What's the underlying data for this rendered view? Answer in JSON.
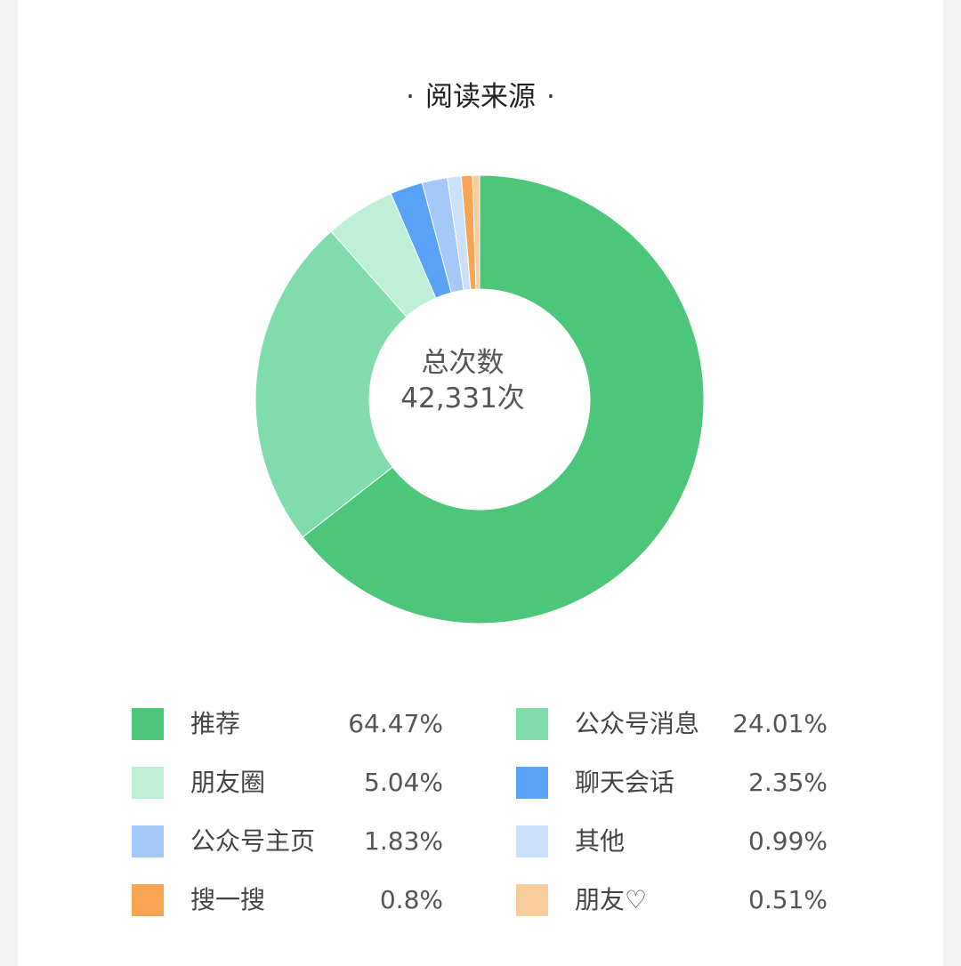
{
  "chart_data": {
    "type": "pie",
    "title": "阅读来源",
    "center_label": "总次数",
    "center_value": "42,331次",
    "legend_position": "bottom",
    "categories": [
      "推荐",
      "公众号消息",
      "朋友圈",
      "聊天会话",
      "公众号主页",
      "其他",
      "搜一搜",
      "朋友♡"
    ],
    "values": [
      64.47,
      24.01,
      5.04,
      2.35,
      1.83,
      0.99,
      0.8,
      0.51
    ],
    "value_labels": [
      "64.47%",
      "24.01%",
      "5.04%",
      "2.35%",
      "1.83%",
      "0.99%",
      "0.8%",
      "0.51%"
    ],
    "colors": [
      "#4cc77a",
      "#80dcab",
      "#bdf0d7",
      "#5aa2f8",
      "#a4c9f9",
      "#cbe0fb",
      "#f7a553",
      "#f8cc9b"
    ]
  }
}
